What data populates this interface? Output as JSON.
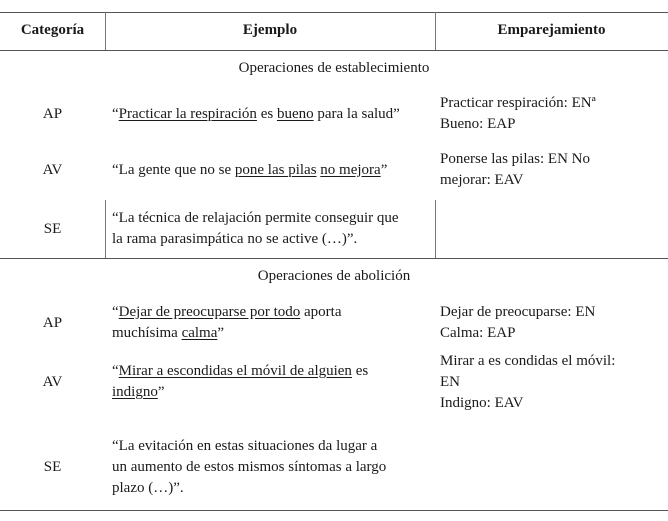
{
  "headers": [
    "Categoría",
    "Ejemplo",
    "Emparejamiento"
  ],
  "sections": [
    {
      "title": "Operaciones de establecimiento",
      "rows": [
        {
          "cat": "AP",
          "example": [
            [
              {
                "t": "“"
              },
              {
                "t": "Practicar la respiración",
                "u": true
              },
              {
                "t": " es "
              },
              {
                "t": "bueno",
                "u": true
              },
              {
                "t": " para la salud”"
              }
            ]
          ],
          "match": [
            "Practicar respiración: ENª",
            "Bueno: EAP"
          ]
        },
        {
          "cat": "AV",
          "example": [
            [
              {
                "t": "“La gente que no se "
              },
              {
                "t": "pone las pilas",
                "u": true
              },
              {
                "t": " "
              },
              {
                "t": "no mejora",
                "u": true
              },
              {
                "t": "”"
              }
            ]
          ],
          "match": [
            "Ponerse las pilas: EN No",
            "mejorar: EAV"
          ]
        },
        {
          "cat": "SE",
          "example": [
            [
              {
                "t": "“La técnica de relajación permite conseguir que"
              }
            ],
            [
              {
                "t": "la rama parasimpática no se active (…)”."
              }
            ]
          ],
          "match": []
        }
      ]
    },
    {
      "title": "Operaciones de abolición",
      "rows": [
        {
          "cat": "AP",
          "example": [
            [
              {
                "t": "“"
              },
              {
                "t": "Dejar de preocuparse por todo",
                "u": true
              },
              {
                "t": " aporta"
              }
            ],
            [
              {
                "t": "muchísima "
              },
              {
                "t": "calma",
                "u": true
              },
              {
                "t": "”"
              }
            ]
          ],
          "match": [
            "Dejar de preocuparse: EN",
            "Calma: EAP"
          ]
        },
        {
          "cat": "AV",
          "example": [
            [
              {
                "t": "“"
              },
              {
                "t": "Mirar a escondidas el móvil de alguien",
                "u": true
              },
              {
                "t": " es"
              }
            ],
            [
              {
                "t": "indigno",
                "u": true
              },
              {
                "t": "”"
              }
            ]
          ],
          "match": [
            "Mirar a es condidas el móvil:",
            "EN",
            "Indigno: EAV"
          ]
        },
        {
          "cat": "SE",
          "example": [
            [
              {
                "t": "“La evitación en estas situaciones da lugar a"
              }
            ],
            [
              {
                "t": "un aumento de estos mismos síntomas a largo"
              }
            ],
            [
              {
                "t": "plazo (…)”."
              }
            ]
          ],
          "match": []
        }
      ]
    }
  ]
}
